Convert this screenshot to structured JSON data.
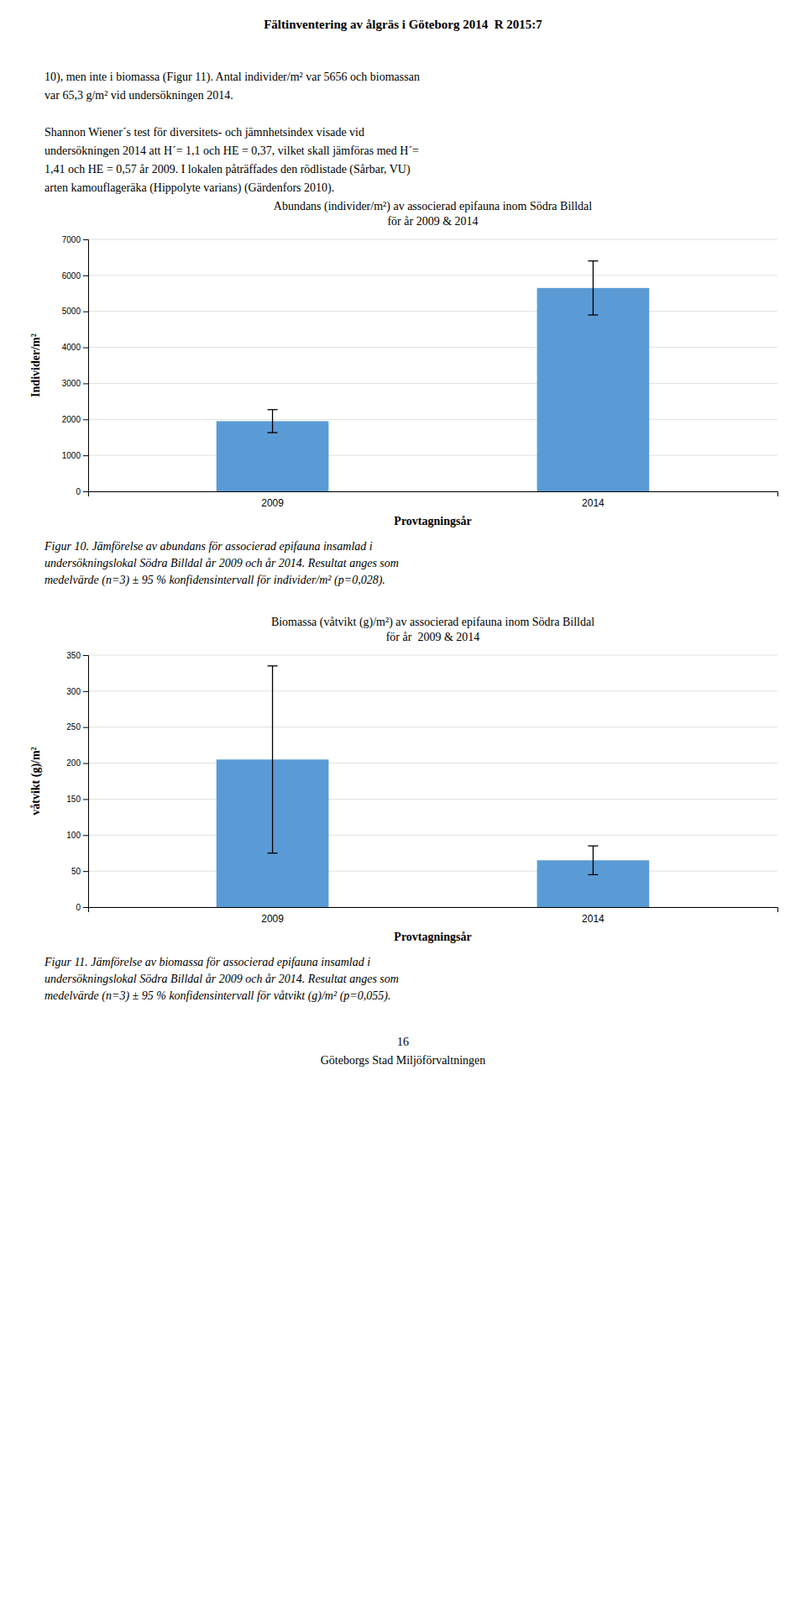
{
  "page_title": "Fältinventering av ålgräs i Göteborg 2014  R 2015:7",
  "body_text": [
    [
      "10), men inte i biomassa (Figur 11). Antal individer/m² var 5656 och biomassan",
      "var 65,3 g/m² vid undersökningen 2014."
    ],
    [
      "Shannon Wiener´s test för diversitets- och jämnhetsindex visade vid",
      "undersökningen 2014 att H´= 1,1 och HE = 0,37, vilket skall jämföras med H´=",
      "1,41 och HE = 0,57 år 2009. I lokalen påträffades den rödlistade (Sårbar, VU)",
      "arten kamouflageräka (Hippolyte varians) (Gärdenfors 2010)."
    ]
  ],
  "chart_data": [
    {
      "type": "bar",
      "title": [
        "Abundans (individer/m²) av associerad epifauna inom Södra Billdal",
        "för år 2009 & 2014"
      ],
      "x_label": "Provtagningsår",
      "y_label": "Individer/m²",
      "categories": [
        "2009",
        "2014"
      ],
      "values": [
        1950,
        5650
      ],
      "errors": [
        320,
        750
      ],
      "color": "#5b9bd5",
      "ylim": [
        0,
        7000
      ],
      "yticks": [
        0,
        1000,
        2000,
        3000,
        4000,
        5000,
        6000,
        7000
      ],
      "grid": true,
      "caption": [
        "Figur 10. Jämförelse av abundans för associerad epifauna insamlad i",
        "undersökningslokal Södra Billdal år 2009 och år 2014. Resultat anges som",
        "medelvärde (n=3) ± 95 % konfidensintervall för individer/m² (p=0,028)."
      ]
    },
    {
      "type": "bar",
      "title": [
        "Biomassa (våtvikt (g)/m²) av associerad epifauna inom Södra Billdal",
        "för år  2009 & 2014"
      ],
      "x_label": "Provtagningsår",
      "y_label": "våtvikt (g)/m²",
      "categories": [
        "2009",
        "2014"
      ],
      "values": [
        205,
        65
      ],
      "errors": [
        130,
        20
      ],
      "color": "#5b9bd5",
      "ylim": [
        0,
        350
      ],
      "yticks": [
        0,
        50,
        100,
        150,
        200,
        250,
        300,
        350
      ],
      "grid": true,
      "caption": [
        "Figur 11. Jämförelse av biomassa för associerad epifauna insamlad i",
        "undersökningslokal Södra Billdal år 2009 och år 2014. Resultat anges som",
        "medelvärde (n=3) ± 95 % konfidensintervall för våtvikt (g)/m² (p=0,055)."
      ]
    }
  ],
  "page_number": "16",
  "footer": "Göteborgs Stad Miljöförvaltningen"
}
